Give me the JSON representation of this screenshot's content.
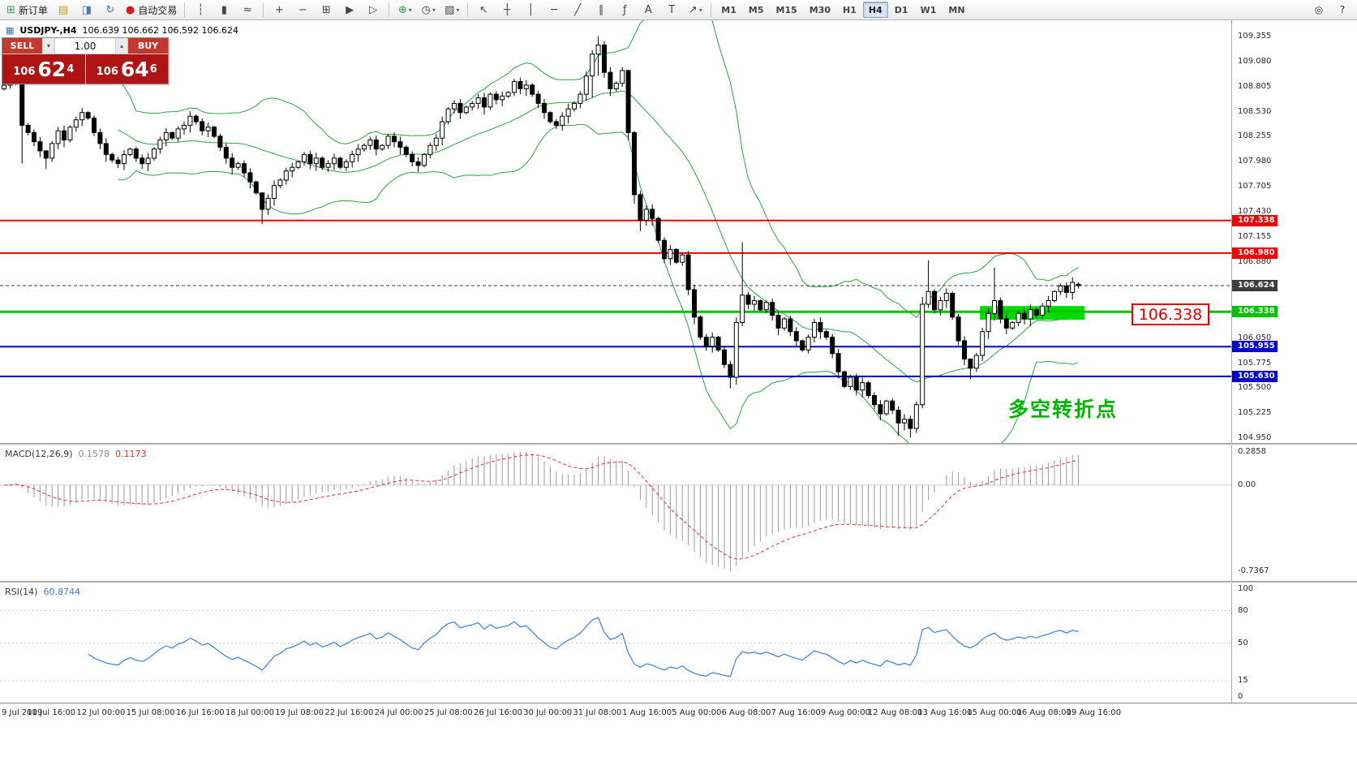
{
  "toolbar": {
    "groups": [
      {
        "name": "standard",
        "items": [
          {
            "name": "new-order-button",
            "glyph": "⊞",
            "color": "#2E9E50",
            "label": "新订单"
          },
          {
            "name": "new-chart-button",
            "glyph": "▤",
            "color": "#C89B28"
          },
          {
            "name": "profiles-button",
            "glyph": "◨",
            "color": "#4878B4"
          },
          {
            "name": "refresh-button",
            "glyph": "↻",
            "color": "#3C78C8"
          },
          {
            "name": "auto-trading-button",
            "glyph": "●",
            "color": "#CC2222",
            "label": "自动交易"
          }
        ]
      },
      {
        "name": "chart-type",
        "items": [
          {
            "name": "bar-chart-button",
            "glyph": "┆",
            "color": "#444"
          },
          {
            "name": "candlestick-chart-button",
            "glyph": "▮",
            "color": "#444"
          },
          {
            "name": "line-chart-button",
            "glyph": "≈",
            "color": "#444"
          }
        ]
      },
      {
        "name": "zoom",
        "items": [
          {
            "name": "zoom-in-button",
            "glyph": "+",
            "color": "#444"
          },
          {
            "name": "zoom-out-button",
            "glyph": "−",
            "color": "#444"
          },
          {
            "name": "tile-windows-button",
            "glyph": "⊞",
            "color": "#444"
          },
          {
            "name": "auto-scroll-button",
            "glyph": "▶",
            "color": "#444"
          },
          {
            "name": "chart-shift-button",
            "glyph": "▷",
            "color": "#444"
          }
        ]
      },
      {
        "name": "tools",
        "items": [
          {
            "name": "indicators-button",
            "glyph": "⊕",
            "color": "#2E9E50",
            "dropdown": true
          },
          {
            "name": "periods-button",
            "glyph": "◷",
            "color": "#444",
            "dropdown": true
          },
          {
            "name": "templates-button",
            "glyph": "▧",
            "color": "#444",
            "dropdown": true
          }
        ]
      },
      {
        "name": "drawing",
        "items": [
          {
            "name": "cursor-button",
            "glyph": "↖",
            "color": "#444"
          },
          {
            "name": "crosshair-button",
            "glyph": "┼",
            "color": "#444"
          },
          {
            "name": "vertical-line-button",
            "glyph": "│",
            "color": "#444"
          },
          {
            "name": "horizontal-line-button",
            "glyph": "─",
            "color": "#444"
          },
          {
            "name": "trendline-button",
            "glyph": "╱",
            "color": "#444"
          },
          {
            "name": "channel-button",
            "glyph": "∥",
            "color": "#444"
          },
          {
            "name": "fibonacci-button",
            "glyph": "ƒ",
            "color": "#444"
          },
          {
            "name": "text-button",
            "glyph": "A",
            "color": "#444"
          },
          {
            "name": "label-button",
            "glyph": "T",
            "color": "#444"
          },
          {
            "name": "arrows-button",
            "glyph": "↗",
            "color": "#444",
            "dropdown": true
          }
        ]
      }
    ],
    "timeframes": {
      "items": [
        "M1",
        "M5",
        "M15",
        "M30",
        "H1",
        "H4",
        "D1",
        "W1",
        "MN"
      ],
      "active": "H4"
    },
    "right_items": [
      {
        "name": "search-button",
        "glyph": "◎"
      },
      {
        "name": "help-button",
        "glyph": "?"
      }
    ]
  },
  "chart": {
    "title": "USDJPY-,H4",
    "ohlc_text": "106.639 106.662 106.592 106.624"
  },
  "trade_panel": {
    "sell_label": "SELL",
    "buy_label": "BUY",
    "volume": "1.00",
    "bid_small": "106",
    "bid_big": "62",
    "bid_pip": "4",
    "ask_small": "106",
    "ask_big": "64",
    "ask_pip": "6"
  },
  "macd": {
    "name": "MACD(12,26,9)",
    "value_main": "0.1578",
    "value_signal": "0.1173"
  },
  "rsi": {
    "name": "RSI(14)",
    "value": "60.8744"
  },
  "annotations": {
    "callout": "106.338",
    "turning_point": "多空转折点"
  },
  "chart_data": {
    "type": "candlestick",
    "symbol": "USDJPY-",
    "period": "H4",
    "visible_price_range": [
      104.9,
      109.53
    ],
    "first_open": 108.78,
    "closes": [
      108.82,
      108.88,
      108.92,
      108.38,
      108.3,
      108.2,
      108.1,
      108.02,
      108.18,
      108.32,
      108.22,
      108.36,
      108.44,
      108.52,
      108.46,
      108.3,
      108.18,
      108.06,
      108.0,
      107.96,
      108.06,
      108.12,
      108.02,
      107.96,
      108.02,
      108.12,
      108.22,
      108.3,
      108.24,
      108.34,
      108.38,
      108.48,
      108.42,
      108.32,
      108.36,
      108.26,
      108.14,
      108.02,
      107.92,
      107.96,
      107.86,
      107.76,
      107.64,
      107.46,
      107.58,
      107.72,
      107.78,
      107.88,
      107.92,
      107.98,
      108.06,
      107.96,
      108.02,
      107.92,
      107.96,
      108.02,
      107.92,
      107.98,
      108.06,
      108.12,
      108.16,
      108.22,
      108.12,
      108.16,
      108.26,
      108.2,
      108.14,
      108.06,
      107.98,
      107.94,
      108.06,
      108.16,
      108.24,
      108.42,
      108.56,
      108.62,
      108.52,
      108.58,
      108.62,
      108.68,
      108.58,
      108.72,
      108.66,
      108.7,
      108.74,
      108.86,
      108.78,
      108.82,
      108.72,
      108.62,
      108.52,
      108.42,
      108.38,
      108.48,
      108.56,
      108.62,
      108.72,
      108.92,
      109.16,
      109.26,
      108.96,
      108.78,
      108.84,
      108.98,
      108.3,
      107.62,
      107.34,
      107.46,
      107.36,
      107.12,
      106.92,
      107.02,
      106.88,
      106.96,
      106.58,
      106.28,
      106.06,
      105.96,
      106.06,
      105.92,
      105.76,
      105.62,
      106.22,
      106.52,
      106.42,
      106.46,
      106.36,
      106.44,
      106.3,
      106.16,
      106.26,
      106.12,
      106.02,
      105.92,
      106.06,
      106.22,
      106.12,
      106.06,
      105.88,
      105.68,
      105.52,
      105.62,
      105.48,
      105.56,
      105.42,
      105.32,
      105.22,
      105.36,
      105.26,
      105.12,
      105.16,
      105.06,
      105.32,
      106.42,
      106.56,
      106.36,
      106.46,
      106.54,
      106.28,
      106.02,
      105.82,
      105.72,
      105.86,
      106.12,
      106.32,
      106.46,
      106.26,
      106.16,
      106.22,
      106.32,
      106.26,
      106.36,
      106.3,
      106.4,
      106.46,
      106.56,
      106.62,
      106.55,
      106.66,
      106.624
    ],
    "wick_overrides": {
      "3": [
        108.96,
        107.96
      ],
      "7": [
        108.08,
        107.9
      ],
      "43": [
        107.52,
        107.3
      ],
      "98": [
        109.2,
        108.68
      ],
      "99": [
        109.355,
        108.92
      ],
      "103": [
        109.02,
        108.8
      ],
      "104": [
        108.99,
        108.22
      ],
      "105": [
        108.32,
        107.52
      ],
      "106": [
        107.66,
        107.22
      ],
      "121": [
        105.8,
        105.5
      ],
      "123": [
        107.1,
        106.18
      ],
      "149": [
        105.3,
        104.98
      ],
      "151": [
        105.2,
        104.96
      ],
      "153": [
        106.5,
        105.28
      ],
      "154": [
        106.9,
        106.38
      ],
      "161": [
        105.82,
        105.6
      ],
      "165": [
        106.82,
        106.24
      ]
    },
    "last_candle": [
      106.639,
      106.662,
      106.592,
      106.624
    ],
    "bollinger": {
      "period": 20,
      "deviation": 2,
      "color": "#2FA048"
    },
    "horizontal_lines": [
      {
        "name": "resistance-upper",
        "price": 107.338,
        "color": "#F40000",
        "width": 2,
        "tag": "107.338"
      },
      {
        "name": "resistance-lower",
        "price": 106.98,
        "color": "#F40000",
        "width": 2,
        "tag": "106.980"
      },
      {
        "name": "last-price",
        "price": 106.624,
        "color": "#3C3C3C",
        "width": 1,
        "dashed": true,
        "tag": "106.624"
      },
      {
        "name": "pivot-green",
        "price": 106.338,
        "color": "#00C400",
        "width": 3,
        "tag": "106.338"
      },
      {
        "name": "support-upper",
        "price": 105.955,
        "color": "#0000CC",
        "width": 2,
        "tag": "105.955"
      },
      {
        "name": "support-lower",
        "price": 105.63,
        "color": "#0000CC",
        "width": 2,
        "tag": "105.630"
      }
    ],
    "highlight_rect": {
      "from_index": 163,
      "to_index": 179.6,
      "price_top": 106.4,
      "price_bottom": 106.25,
      "color": "#00DC00"
    },
    "price_ticks": [
      "109.355",
      "109.080",
      "108.805",
      "108.530",
      "108.255",
      "107.980",
      "107.705",
      "107.430",
      "107.155",
      "106.880",
      "106.050",
      "105.775",
      "105.500",
      "105.225",
      "104.950"
    ],
    "macd_axis": {
      "max": 0.2858,
      "min": -0.7367,
      "ticks": [
        {
          "label": "0.2858",
          "value": 0.2858
        },
        {
          "label": "0.00",
          "value": 0
        },
        {
          "label": "-0.7367",
          "value": -0.7367
        }
      ]
    },
    "rsi_axis": {
      "ticks": [
        100,
        80,
        50,
        15,
        0
      ],
      "levels": [
        80,
        50,
        15
      ]
    },
    "time_labels": [
      "9 Jul 2019",
      "10 Jul 16:00",
      "12 Jul 00:00",
      "15 Jul 08:00",
      "16 Jul 16:00",
      "18 Jul 00:00",
      "19 Jul 08:00",
      "22 Jul 16:00",
      "24 Jul 00:00",
      "25 Jul 08:00",
      "26 Jul 16:00",
      "30 Jul 00:00",
      "31 Jul 08:00",
      "1 Aug 16:00",
      "5 Aug 00:00",
      "6 Aug 08:00",
      "7 Aug 16:00",
      "9 Aug 00:00",
      "12 Aug 08:00",
      "13 Aug 16:00",
      "15 Aug 00:00",
      "16 Aug 08:00",
      "19 Aug 16:00"
    ]
  }
}
